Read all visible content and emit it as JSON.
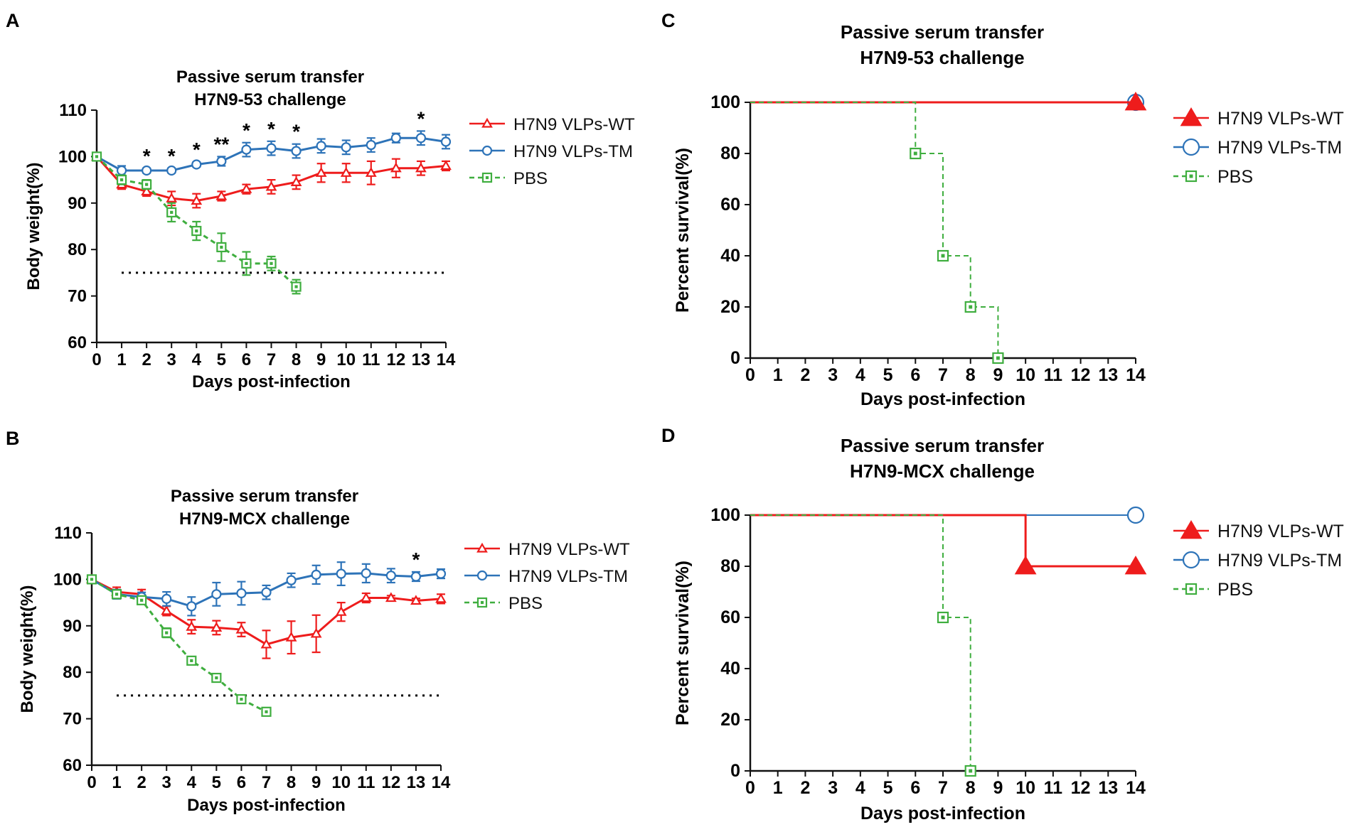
{
  "figure": {
    "panels": [
      "A",
      "B",
      "C",
      "D"
    ]
  },
  "colors": {
    "wt": "#ee1c1c",
    "tm": "#2d73b8",
    "pbs": "#3fae3f",
    "axis": "#111111"
  },
  "legend": {
    "wt": "H7N9 VLPs-WT",
    "tm": "H7N9 VLPs-TM",
    "pbs": "PBS"
  },
  "chart_data": [
    {
      "panel": "A",
      "type": "line",
      "title": [
        "Passive serum transfer",
        "H7N9-53 challenge"
      ],
      "xlabel": "Days post-infection",
      "ylabel": "Body weight(%)",
      "xlim": [
        0,
        14
      ],
      "ylim": [
        60,
        110
      ],
      "xticks": [
        0,
        1,
        2,
        3,
        4,
        5,
        6,
        7,
        8,
        9,
        10,
        11,
        12,
        13,
        14
      ],
      "yticks": [
        60,
        70,
        80,
        90,
        100,
        110
      ],
      "threshold": 75,
      "series": [
        {
          "key": "wt",
          "name": "H7N9 VLPs-WT",
          "marker": "triangle-open",
          "dash": false,
          "x": [
            0,
            1,
            2,
            3,
            4,
            5,
            6,
            7,
            8,
            9,
            10,
            11,
            12,
            13,
            14
          ],
          "values": [
            100,
            94,
            92.5,
            91,
            90.5,
            91.5,
            93,
            93.5,
            94.5,
            96.5,
            96.5,
            96.5,
            97.5,
            97.5,
            98
          ],
          "errors": [
            0,
            1,
            1,
            1.5,
            1.5,
            1,
            1,
            1.5,
            1.5,
            2,
            2,
            2.5,
            2,
            1.5,
            1
          ]
        },
        {
          "key": "tm",
          "name": "H7N9 VLPs-TM",
          "marker": "circle-open",
          "dash": false,
          "x": [
            0,
            1,
            2,
            3,
            4,
            5,
            6,
            7,
            8,
            9,
            10,
            11,
            12,
            13,
            14
          ],
          "values": [
            100,
            97,
            97,
            97,
            98.3,
            99,
            101.5,
            101.8,
            101.2,
            102.3,
            102,
            102.5,
            104,
            104,
            103.2
          ],
          "errors": [
            0,
            1,
            0.5,
            0.5,
            0.5,
            1,
            1.5,
            1.5,
            1.5,
            1.5,
            1.5,
            1.5,
            1,
            1.5,
            1.5
          ]
        },
        {
          "key": "pbs",
          "name": "PBS",
          "marker": "square-open",
          "dash": true,
          "x": [
            0,
            1,
            2,
            3,
            4,
            5,
            6,
            7,
            8
          ],
          "values": [
            100,
            95,
            94,
            88,
            84,
            80.5,
            77,
            77,
            72
          ],
          "errors": [
            0,
            1,
            1,
            2,
            2,
            3,
            2.5,
            1.5,
            1.5
          ]
        }
      ],
      "annotations": [
        {
          "x": 2,
          "text": "*"
        },
        {
          "x": 3,
          "text": "*"
        },
        {
          "x": 4,
          "text": "*"
        },
        {
          "x": 5,
          "text": "**"
        },
        {
          "x": 6,
          "text": "*"
        },
        {
          "x": 7,
          "text": "*"
        },
        {
          "x": 8,
          "text": "*"
        },
        {
          "x": 13,
          "text": "*"
        }
      ]
    },
    {
      "panel": "B",
      "type": "line",
      "title": [
        "Passive serum transfer",
        "H7N9-MCX challenge"
      ],
      "xlabel": "Days post-infection",
      "ylabel": "Body weight(%)",
      "xlim": [
        0,
        14
      ],
      "ylim": [
        60,
        110
      ],
      "xticks": [
        0,
        1,
        2,
        3,
        4,
        5,
        6,
        7,
        8,
        9,
        10,
        11,
        12,
        13,
        14
      ],
      "yticks": [
        60,
        70,
        80,
        90,
        100,
        110
      ],
      "threshold": 75,
      "series": [
        {
          "key": "wt",
          "name": "H7N9 VLPs-WT",
          "marker": "triangle-open",
          "dash": false,
          "x": [
            0,
            1,
            2,
            3,
            4,
            5,
            6,
            7,
            8,
            9,
            10,
            11,
            12,
            13,
            14
          ],
          "values": [
            100,
            97.3,
            96.8,
            93.2,
            89.8,
            89.6,
            89.2,
            86,
            87.5,
            88.3,
            93,
            96,
            96,
            95.4,
            95.8
          ],
          "errors": [
            0,
            1,
            1,
            1,
            1.5,
            1.5,
            1.5,
            3,
            3.5,
            4,
            2,
            1,
            0.5,
            0.5,
            1
          ]
        },
        {
          "key": "tm",
          "name": "H7N9 VLPs-TM",
          "marker": "circle-open",
          "dash": false,
          "x": [
            0,
            1,
            2,
            3,
            4,
            5,
            6,
            7,
            8,
            9,
            10,
            11,
            12,
            13,
            14
          ],
          "values": [
            100,
            96.8,
            96.2,
            95.8,
            94.2,
            96.8,
            97,
            97.2,
            99.8,
            101,
            101.2,
            101.3,
            100.8,
            100.6,
            101.2
          ],
          "errors": [
            0,
            1,
            1,
            1.5,
            2,
            2.5,
            2.5,
            1.5,
            1.5,
            2,
            2.5,
            2,
            1.5,
            1,
            1
          ]
        },
        {
          "key": "pbs",
          "name": "PBS",
          "marker": "square-open",
          "dash": true,
          "x": [
            0,
            1,
            2,
            3,
            4,
            5,
            6,
            7
          ],
          "values": [
            100,
            96.8,
            95.5,
            88.5,
            82.5,
            78.8,
            74.2,
            71.5
          ],
          "errors": [
            0,
            0.5,
            0.5,
            1,
            0.5,
            0.8,
            0.8,
            0.5
          ]
        }
      ],
      "annotations": [
        {
          "x": 13,
          "text": "*"
        }
      ]
    },
    {
      "panel": "C",
      "type": "line",
      "subtype": "survival",
      "title": [
        "Passive serum transfer",
        "H7N9-53 challenge"
      ],
      "xlabel": "Days post-infection",
      "ylabel": "Percent survival(%)",
      "xlim": [
        0,
        14
      ],
      "ylim": [
        0,
        100
      ],
      "xticks": [
        0,
        1,
        2,
        3,
        4,
        5,
        6,
        7,
        8,
        9,
        10,
        11,
        12,
        13,
        14
      ],
      "yticks": [
        0,
        20,
        40,
        60,
        80,
        100
      ],
      "series": [
        {
          "key": "tm",
          "name": "H7N9 VLPs-TM",
          "marker": "circle-open",
          "dash": false,
          "x": [
            0,
            14
          ],
          "values": [
            100,
            100
          ],
          "marker_x": [
            14
          ]
        },
        {
          "key": "wt",
          "name": "H7N9 VLPs-WT",
          "marker": "triangle-filled",
          "dash": false,
          "x": [
            0,
            14
          ],
          "values": [
            100,
            100
          ],
          "marker_x": [
            14
          ]
        },
        {
          "key": "pbs",
          "name": "PBS",
          "marker": "square-open",
          "dash": true,
          "x": [
            0,
            6,
            7,
            8,
            9
          ],
          "values": [
            100,
            80,
            40,
            20,
            0
          ],
          "marker_x": [
            6,
            7,
            8,
            9
          ]
        }
      ]
    },
    {
      "panel": "D",
      "type": "line",
      "subtype": "survival",
      "title": [
        "Passive serum transfer",
        "H7N9-MCX challenge"
      ],
      "xlabel": "Days post-infection",
      "ylabel": "Percent survival(%)",
      "xlim": [
        0,
        14
      ],
      "ylim": [
        0,
        100
      ],
      "xticks": [
        0,
        1,
        2,
        3,
        4,
        5,
        6,
        7,
        8,
        9,
        10,
        11,
        12,
        13,
        14
      ],
      "yticks": [
        0,
        20,
        40,
        60,
        80,
        100
      ],
      "series": [
        {
          "key": "tm",
          "name": "H7N9 VLPs-TM",
          "marker": "circle-open",
          "dash": false,
          "x": [
            0,
            14
          ],
          "values": [
            100,
            100
          ],
          "marker_x": [
            14
          ]
        },
        {
          "key": "wt",
          "name": "H7N9 VLPs-WT",
          "marker": "triangle-filled",
          "dash": false,
          "x": [
            0,
            10,
            14
          ],
          "values": [
            100,
            80,
            80
          ],
          "marker_x": [
            10,
            14
          ]
        },
        {
          "key": "pbs",
          "name": "PBS",
          "marker": "square-open",
          "dash": true,
          "x": [
            0,
            7,
            8
          ],
          "values": [
            100,
            60,
            0
          ],
          "marker_x": [
            7,
            8
          ]
        }
      ]
    }
  ]
}
